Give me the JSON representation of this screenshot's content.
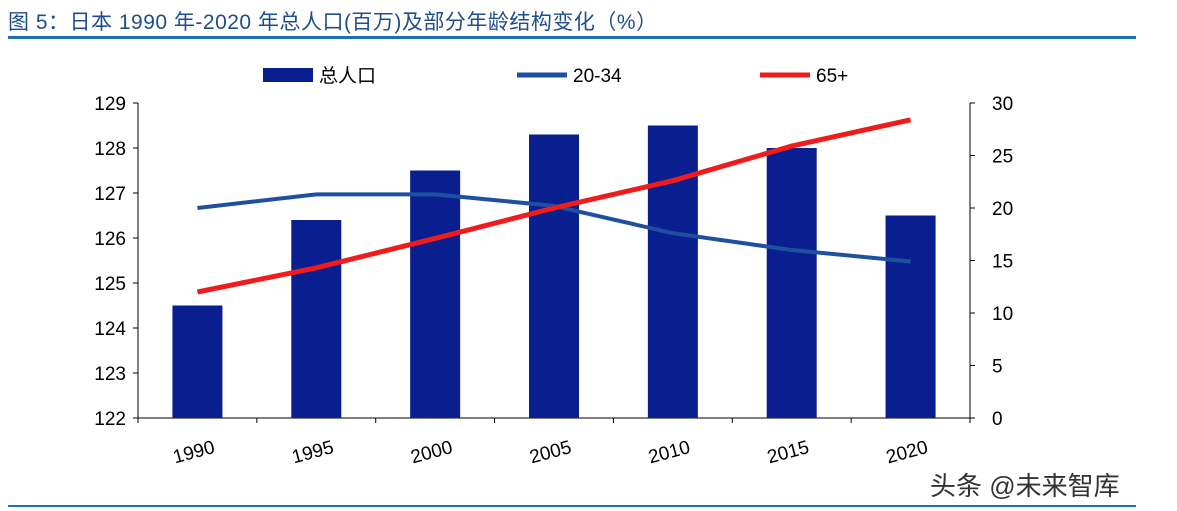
{
  "title": "图 5：日本 1990 年-2020 年总人口(百万)及部分年龄结构变化（%）",
  "watermark": "头条 @未来智库",
  "chart_data": {
    "type": "bar+line",
    "categories": [
      "1990",
      "1995",
      "2000",
      "2005",
      "2010",
      "2015",
      "2020"
    ],
    "series": [
      {
        "name": "总人口",
        "type": "bar",
        "axis": "left",
        "color": "#0a1f8f",
        "values": [
          124.5,
          126.4,
          127.5,
          128.3,
          128.5,
          128.0,
          126.5
        ]
      },
      {
        "name": "20-34",
        "type": "line",
        "axis": "right",
        "color": "#1f4fa0",
        "values": [
          20.0,
          21.3,
          21.3,
          20.2,
          17.6,
          16.0,
          14.9
        ]
      },
      {
        "name": "65+",
        "type": "line",
        "axis": "right",
        "color": "#ee1c1c",
        "values": [
          12.0,
          14.3,
          17.1,
          20.0,
          22.6,
          25.9,
          28.4
        ]
      }
    ],
    "left_axis": {
      "min": 122,
      "max": 129,
      "ticks": [
        "122",
        "123",
        "124",
        "125",
        "126",
        "127",
        "128",
        "129"
      ]
    },
    "right_axis": {
      "min": 0,
      "max": 30,
      "ticks": [
        "0",
        "5",
        "10",
        "15",
        "20",
        "25",
        "30"
      ]
    },
    "legend": "top",
    "grid": false
  }
}
